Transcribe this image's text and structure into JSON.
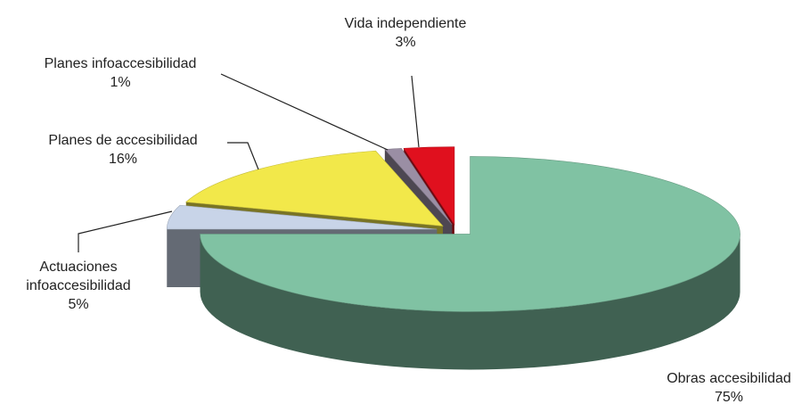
{
  "chart_data": {
    "type": "pie3d",
    "categories": [
      "Obras accesibilidad",
      "Actuaciones infoaccesibilidad",
      "Planes de accesibilidad",
      "Planes infoaccesibilidad",
      "Vida independiente"
    ],
    "values": [
      75,
      5,
      16,
      1,
      3
    ],
    "value_labels": [
      "75%",
      "5%",
      "16%",
      "1%",
      "3%"
    ],
    "colors": [
      "#80c2a3",
      "#c8d4e8",
      "#f2e84a",
      "#9a8ea4",
      "#e0101e"
    ]
  }
}
